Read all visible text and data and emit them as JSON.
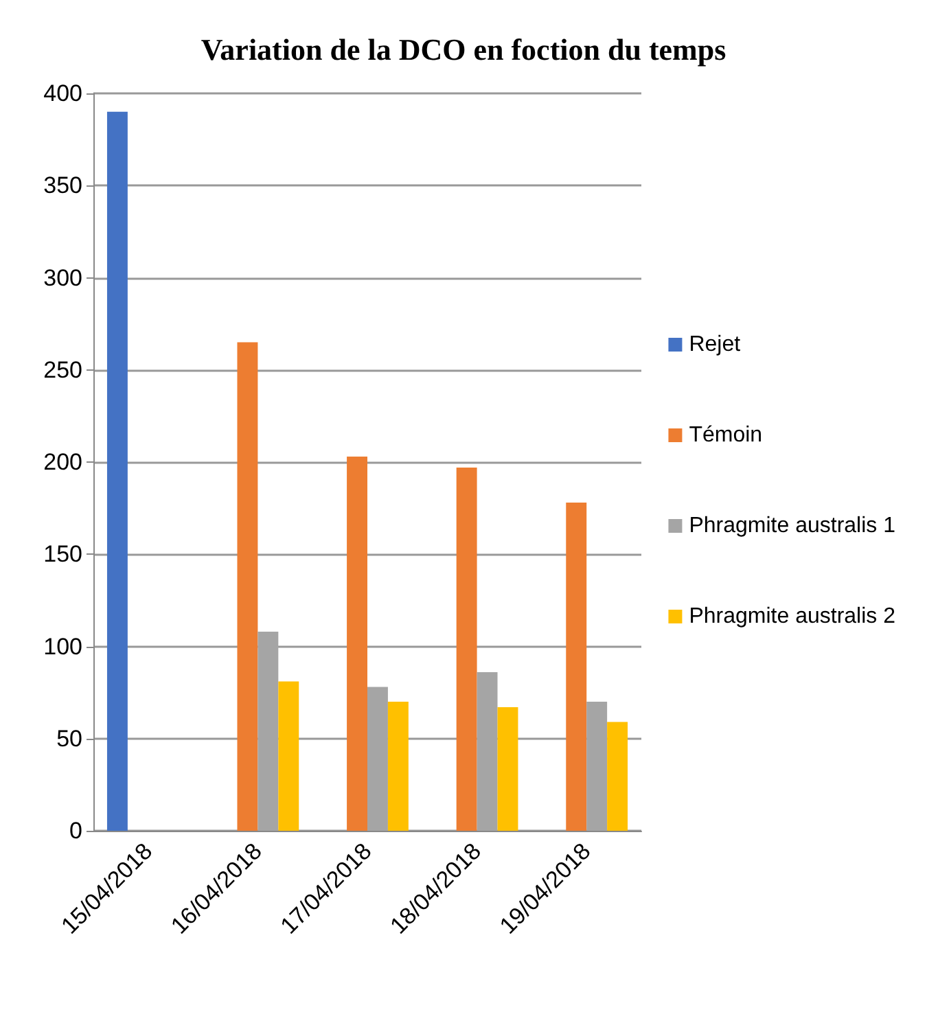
{
  "chart_data": {
    "type": "bar",
    "title": "Variation de la DCO en foction du temps",
    "categories": [
      "15/04/2018",
      "16/04/2018",
      "17/04/2018",
      "18/04/2018",
      "19/04/2018"
    ],
    "series": [
      {
        "name": "Rejet",
        "color": "#4472c4",
        "values": [
          390,
          null,
          null,
          null,
          null
        ]
      },
      {
        "name": "Témoin",
        "color": "#ed7d31",
        "values": [
          null,
          265,
          203,
          197,
          178
        ]
      },
      {
        "name": "Phragmite australis 1",
        "color": "#a5a5a5",
        "values": [
          null,
          108,
          78,
          86,
          70
        ]
      },
      {
        "name": "Phragmite australis 2",
        "color": "#ffc000",
        "values": [
          null,
          81,
          70,
          67,
          59
        ]
      }
    ],
    "ylim": [
      0,
      400
    ],
    "yticks": [
      0,
      50,
      100,
      150,
      200,
      250,
      300,
      350,
      400
    ],
    "grid": "y",
    "legend": "right"
  }
}
